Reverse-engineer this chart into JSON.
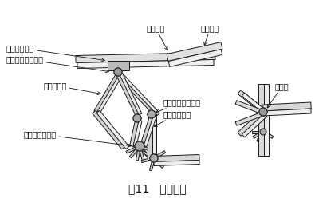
{
  "title": "图11   节点种类",
  "title_fontsize": 10,
  "background_color": "#ffffff",
  "labels": {
    "xiangjie": "相贯节点",
    "bianjie": "边界杆件",
    "shangxian": "上弦矩形钢管",
    "wumian": "屋面弦层半球节点",
    "fuju": "腹杆圆钢管",
    "neib": "内部腹层球节点",
    "qianghuan": "墙面弦层半球节点",
    "qiangjuxing": "墙面矩形钢管",
    "jiaojiedian": "角节点"
  },
  "line_color": "#1a1a1a",
  "fill_color": "#cccccc",
  "node_color": "#aaaaaa",
  "font_name": "SimSun",
  "font_fallbacks": [
    "STSong",
    "AR PL UMing CN",
    "WenQuanYi Micro Hei",
    "Noto Sans CJK SC",
    "DejaVu Sans"
  ]
}
